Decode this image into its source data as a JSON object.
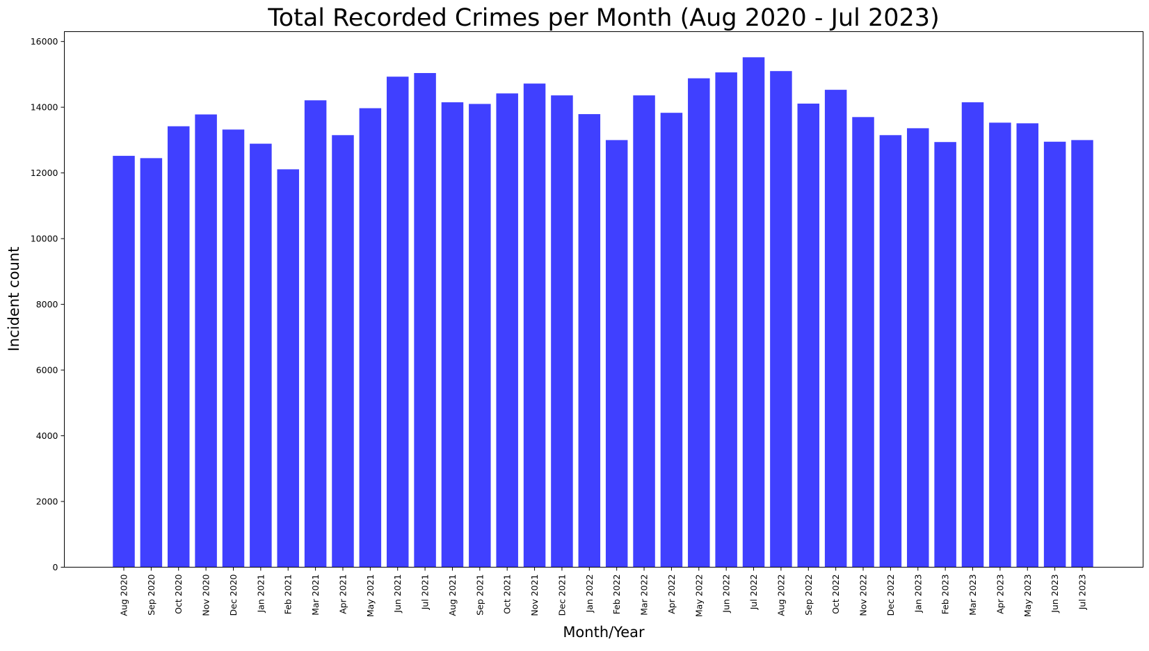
{
  "chart_data": {
    "type": "bar",
    "title": "Total Recorded Crimes per Month (Aug 2020 - Jul 2023)",
    "xlabel": "Month/Year",
    "ylabel": "Incident count",
    "bar_color": "#4040ff",
    "ylim": [
      0,
      16300
    ],
    "yticks": [
      0,
      2000,
      4000,
      6000,
      8000,
      10000,
      12000,
      14000,
      16000
    ],
    "grid": false,
    "categories": [
      "Aug 2020",
      "Sep 2020",
      "Oct 2020",
      "Nov 2020",
      "Dec 2020",
      "Jan 2021",
      "Feb 2021",
      "Mar 2021",
      "Apr 2021",
      "May 2021",
      "Jun 2021",
      "Jul 2021",
      "Aug 2021",
      "Sep 2021",
      "Oct 2021",
      "Nov 2021",
      "Dec 2021",
      "Jan 2022",
      "Feb 2022",
      "Mar 2022",
      "Apr 2022",
      "May 2022",
      "Jun 2022",
      "Jul 2022",
      "Aug 2022",
      "Sep 2022",
      "Oct 2022",
      "Nov 2022",
      "Dec 2022",
      "Jan 2023",
      "Feb 2023",
      "Mar 2023",
      "Apr 2023",
      "May 2023",
      "Jun 2023",
      "Jul 2023"
    ],
    "values": [
      12520,
      12450,
      13420,
      13780,
      13320,
      12890,
      12110,
      14210,
      13150,
      13970,
      14930,
      15040,
      14150,
      14100,
      14420,
      14720,
      14360,
      13790,
      13000,
      14360,
      13830,
      14880,
      15060,
      15520,
      15100,
      14110,
      14530,
      13700,
      13150,
      13360,
      12940,
      14150,
      13530,
      13510,
      12950,
      13000
    ]
  }
}
